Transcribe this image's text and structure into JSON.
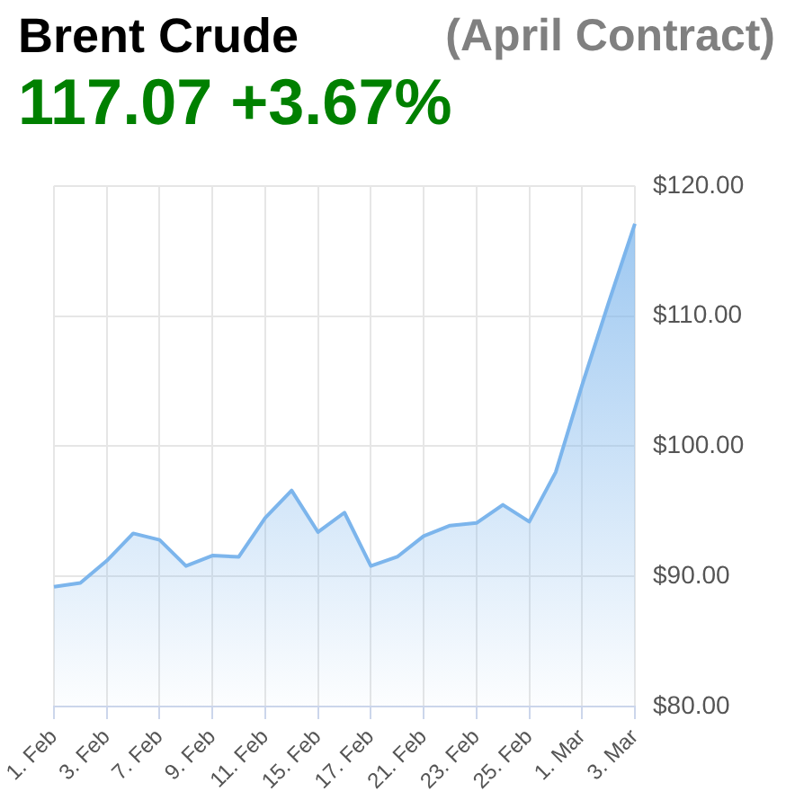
{
  "chart_data": {
    "type": "area",
    "title": "Brent Crude",
    "subtitle": "(April Contract)",
    "annotations": [
      "117.07 +3.67%"
    ],
    "categories": [
      "1. Feb",
      null,
      "3. Feb",
      null,
      "7. Feb",
      null,
      "9. Feb",
      null,
      "11. Feb",
      null,
      "15. Feb",
      null,
      "17. Feb",
      null,
      "21. Feb",
      null,
      "23. Feb",
      null,
      "25. Feb",
      null,
      "1. Mar",
      null,
      "3. Mar"
    ],
    "series": [
      {
        "color": "#7cb5ec",
        "values": [
          89.2,
          89.5,
          91.2,
          93.3,
          92.8,
          90.8,
          91.6,
          91.5,
          94.5,
          96.6,
          93.4,
          94.9,
          90.8,
          91.5,
          93.1,
          93.9,
          94.1,
          95.5,
          94.2,
          98.0,
          104.7,
          111.0,
          117.1
        ]
      }
    ],
    "ylim": [
      80,
      120
    ],
    "yticks": [
      {
        "value": 80,
        "label": "$80.00"
      },
      {
        "value": 90,
        "label": "$90.00"
      },
      {
        "value": 100,
        "label": "$100.00"
      },
      {
        "value": 110,
        "label": "$110.00"
      },
      {
        "value": 120,
        "label": "$120.00"
      }
    ],
    "grid": true,
    "legend": false,
    "marker": "none"
  }
}
